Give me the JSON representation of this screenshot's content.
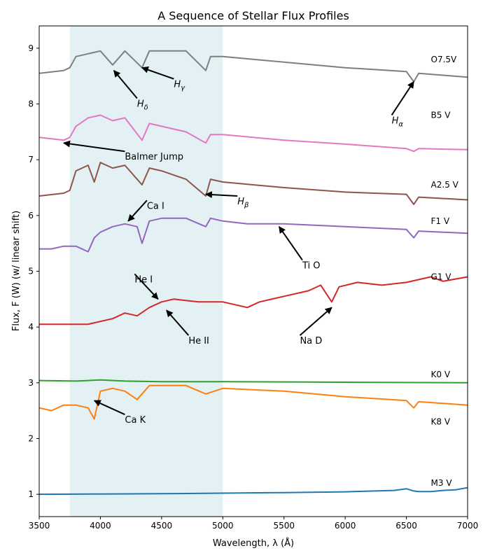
{
  "chart_data": {
    "type": "line",
    "title": "A Sequence of Stellar Flux Profiles",
    "xlabel": "Wavelength, λ (Å)",
    "ylabel": "Flux, F (W) (w/ linear shift)",
    "xlim": [
      3500,
      7000
    ],
    "ylim": [
      0.6,
      9.4
    ],
    "xticks": [
      3500,
      4000,
      4500,
      5000,
      5500,
      6000,
      6500,
      7000
    ],
    "yticks": [
      1,
      2,
      3,
      4,
      5,
      6,
      7,
      8,
      9
    ],
    "grid": false,
    "highlight_band": {
      "from": 3750,
      "to": 5000,
      "color": "#e3f1f4"
    },
    "series": [
      {
        "name": "M3 V",
        "color": "#1f77b4",
        "base": 1.0,
        "x": [
          3500,
          4000,
          4500,
          5000,
          5500,
          6000,
          6400,
          6500,
          6560,
          6600,
          6700,
          6800,
          6900,
          7000
        ],
        "y": [
          1.0,
          1.005,
          1.01,
          1.02,
          1.03,
          1.045,
          1.07,
          1.1,
          1.06,
          1.05,
          1.05,
          1.07,
          1.08,
          1.12
        ]
      },
      {
        "name": "K8 V",
        "color": "#ff7f0e",
        "base": 2.5,
        "x": [
          3500,
          3600,
          3700,
          3800,
          3900,
          3950,
          4000,
          4100,
          4200,
          4300,
          4400,
          4500,
          4700,
          4861,
          5000,
          5500,
          6000,
          6500,
          6560,
          6600,
          7000
        ],
        "y": [
          2.55,
          2.5,
          2.6,
          2.6,
          2.55,
          2.35,
          2.85,
          2.9,
          2.85,
          2.7,
          2.95,
          2.95,
          2.95,
          2.8,
          2.9,
          2.85,
          2.75,
          2.68,
          2.55,
          2.66,
          2.6
        ]
      },
      {
        "name": "K0 V",
        "color": "#2ca02c",
        "base": 3.0,
        "x": [
          3500,
          3800,
          4000,
          4200,
          4500,
          5000,
          6000,
          7000
        ],
        "y": [
          3.04,
          3.03,
          3.05,
          3.03,
          3.02,
          3.02,
          3.01,
          3.0
        ]
      },
      {
        "name": "G1 V",
        "color": "#d62728",
        "base": 4.0,
        "x": [
          3500,
          3700,
          3900,
          4100,
          4200,
          4300,
          4400,
          4500,
          4600,
          4800,
          5000,
          5200,
          5300,
          5500,
          5700,
          5800,
          5890,
          5950,
          6100,
          6300,
          6500,
          6700,
          6800,
          7000
        ],
        "y": [
          4.05,
          4.05,
          4.05,
          4.15,
          4.25,
          4.2,
          4.35,
          4.45,
          4.5,
          4.45,
          4.45,
          4.35,
          4.45,
          4.55,
          4.65,
          4.75,
          4.45,
          4.72,
          4.8,
          4.75,
          4.8,
          4.9,
          4.82,
          4.9
        ]
      },
      {
        "name": "F1 V",
        "color": "#9467bd",
        "base": 5.4,
        "x": [
          3500,
          3600,
          3700,
          3800,
          3900,
          3950,
          4000,
          4100,
          4200,
          4300,
          4340,
          4400,
          4500,
          4700,
          4861,
          4900,
          5000,
          5200,
          5500,
          6000,
          6500,
          6560,
          6600,
          7000
        ],
        "y": [
          5.4,
          5.4,
          5.45,
          5.45,
          5.35,
          5.6,
          5.7,
          5.8,
          5.85,
          5.8,
          5.5,
          5.9,
          5.95,
          5.95,
          5.8,
          5.95,
          5.9,
          5.85,
          5.85,
          5.8,
          5.75,
          5.6,
          5.72,
          5.68
        ]
      },
      {
        "name": "A2.5 V",
        "color": "#8c564b",
        "base": 6.35,
        "x": [
          3500,
          3700,
          3750,
          3800,
          3900,
          3950,
          4000,
          4100,
          4200,
          4340,
          4400,
          4500,
          4700,
          4861,
          4900,
          5000,
          5500,
          6000,
          6500,
          6560,
          6600,
          7000
        ],
        "y": [
          6.35,
          6.4,
          6.45,
          6.8,
          6.9,
          6.6,
          6.95,
          6.85,
          6.9,
          6.55,
          6.85,
          6.8,
          6.65,
          6.35,
          6.65,
          6.6,
          6.5,
          6.42,
          6.38,
          6.2,
          6.33,
          6.28
        ]
      },
      {
        "name": "B5 V",
        "color": "#e377c2",
        "base": 7.4,
        "x": [
          3500,
          3700,
          3750,
          3800,
          3900,
          4000,
          4100,
          4200,
          4340,
          4400,
          4500,
          4700,
          4861,
          4900,
          5000,
          5500,
          6000,
          6500,
          6560,
          6600,
          7000
        ],
        "y": [
          7.4,
          7.35,
          7.4,
          7.6,
          7.75,
          7.8,
          7.7,
          7.75,
          7.35,
          7.65,
          7.6,
          7.5,
          7.3,
          7.45,
          7.45,
          7.35,
          7.28,
          7.2,
          7.15,
          7.2,
          7.18
        ]
      },
      {
        "name": "O7.5V",
        "color": "#7f7f7f",
        "base": 8.6,
        "x": [
          3500,
          3700,
          3750,
          3800,
          3900,
          4000,
          4100,
          4200,
          4340,
          4400,
          4500,
          4700,
          4861,
          4900,
          5000,
          5500,
          6000,
          6500,
          6560,
          6600,
          7000
        ],
        "y": [
          8.55,
          8.6,
          8.65,
          8.85,
          8.9,
          8.95,
          8.7,
          8.95,
          8.65,
          8.95,
          8.95,
          8.95,
          8.6,
          8.85,
          8.85,
          8.75,
          8.65,
          8.58,
          8.4,
          8.55,
          8.48
        ]
      }
    ],
    "series_labels": [
      {
        "text": "O7.5V",
        "y": 8.8
      },
      {
        "text": "B5 V",
        "y": 7.8
      },
      {
        "text": "A2.5 V",
        "y": 6.55
      },
      {
        "text": "F1 V",
        "y": 5.9
      },
      {
        "text": "G1 V",
        "y": 4.9
      },
      {
        "text": "K0 V",
        "y": 3.15
      },
      {
        "text": "K8 V",
        "y": 2.3
      },
      {
        "text": "M3 V",
        "y": 1.2
      }
    ],
    "annotations": [
      {
        "text": "H",
        "sub": "δ",
        "x": 4300,
        "y": 8.05,
        "ax": 4110,
        "ay": 8.6
      },
      {
        "text": "H",
        "sub": "γ",
        "x": 4600,
        "y": 8.4,
        "ax": 4340,
        "ay": 8.65
      },
      {
        "text": "H",
        "sub": "α",
        "x": 6380,
        "y": 7.75,
        "ax": 6560,
        "ay": 8.4
      },
      {
        "text": "Balmer Jump",
        "x": 4200,
        "y": 7.1,
        "ax": 3700,
        "ay": 7.3
      },
      {
        "text": "H",
        "sub": "β",
        "x": 5120,
        "y": 6.3,
        "ax": 4861,
        "ay": 6.38
      },
      {
        "text": "Ca I",
        "x": 4380,
        "y": 6.22,
        "ax": 4227,
        "ay": 5.9
      },
      {
        "text": "Ti O",
        "x": 5650,
        "y": 5.15,
        "ax": 5460,
        "ay": 5.8
      },
      {
        "text": "He I",
        "x": 4280,
        "y": 4.9,
        "ax": 4471,
        "ay": 4.5
      },
      {
        "text": "He II",
        "x": 4720,
        "y": 3.8,
        "ax": 4540,
        "ay": 4.3
      },
      {
        "text": "Na D",
        "x": 5630,
        "y": 3.8,
        "ax": 5890,
        "ay": 4.35
      },
      {
        "text": "Ca K",
        "x": 4200,
        "y": 2.38,
        "ax": 3950,
        "ay": 2.68
      }
    ]
  }
}
